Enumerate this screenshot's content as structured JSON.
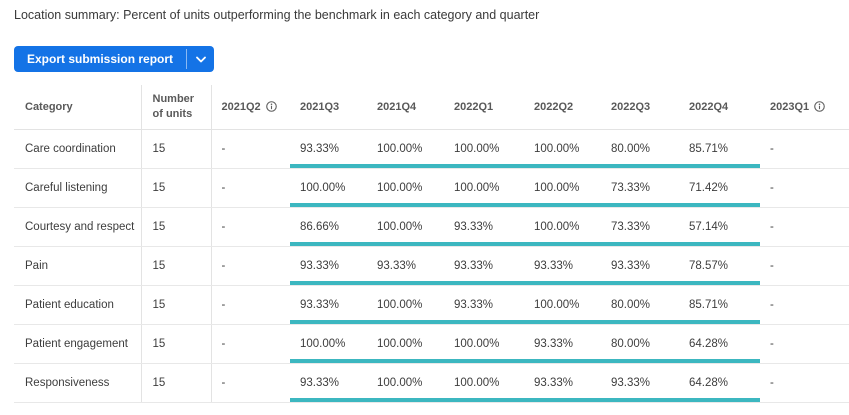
{
  "title": "Location summary: Percent of units outperforming the benchmark in each category and quarter",
  "toolbar": {
    "export_button_label": "Export submission report",
    "dropdown_icon": "chevron-down-icon"
  },
  "colors": {
    "button_blue": "#1473E6",
    "benchmark_teal": "#3CB7C0"
  },
  "table": {
    "columns": [
      {
        "label": "Category",
        "info": false
      },
      {
        "label": "Number of units",
        "info": false
      },
      {
        "label": "2021Q2",
        "info": true
      },
      {
        "label": "2021Q3",
        "info": false
      },
      {
        "label": "2021Q4",
        "info": false
      },
      {
        "label": "2022Q1",
        "info": false
      },
      {
        "label": "2022Q2",
        "info": false
      },
      {
        "label": "2022Q3",
        "info": false
      },
      {
        "label": "2022Q4",
        "info": false
      },
      {
        "label": "2023Q1",
        "info": true
      }
    ],
    "rows": [
      {
        "category": "Care coordination",
        "units": "15",
        "values": [
          "-",
          "93.33%",
          "100.00%",
          "100.00%",
          "100.00%",
          "80.00%",
          "85.71%",
          "-"
        ]
      },
      {
        "category": "Careful listening",
        "units": "15",
        "values": [
          "-",
          "100.00%",
          "100.00%",
          "100.00%",
          "100.00%",
          "73.33%",
          "71.42%",
          "-"
        ]
      },
      {
        "category": "Courtesy and respect",
        "units": "15",
        "values": [
          "-",
          "86.66%",
          "100.00%",
          "93.33%",
          "100.00%",
          "73.33%",
          "57.14%",
          "-"
        ]
      },
      {
        "category": "Pain",
        "units": "15",
        "values": [
          "-",
          "93.33%",
          "93.33%",
          "93.33%",
          "93.33%",
          "93.33%",
          "78.57%",
          "-"
        ]
      },
      {
        "category": "Patient education",
        "units": "15",
        "values": [
          "-",
          "93.33%",
          "100.00%",
          "93.33%",
          "100.00%",
          "80.00%",
          "85.71%",
          "-"
        ]
      },
      {
        "category": "Patient engagement",
        "units": "15",
        "values": [
          "-",
          "100.00%",
          "100.00%",
          "100.00%",
          "93.33%",
          "80.00%",
          "64.28%",
          "-"
        ]
      },
      {
        "category": "Responsiveness",
        "units": "15",
        "values": [
          "-",
          "93.33%",
          "100.00%",
          "100.00%",
          "93.33%",
          "93.33%",
          "64.28%",
          "-"
        ]
      }
    ]
  }
}
